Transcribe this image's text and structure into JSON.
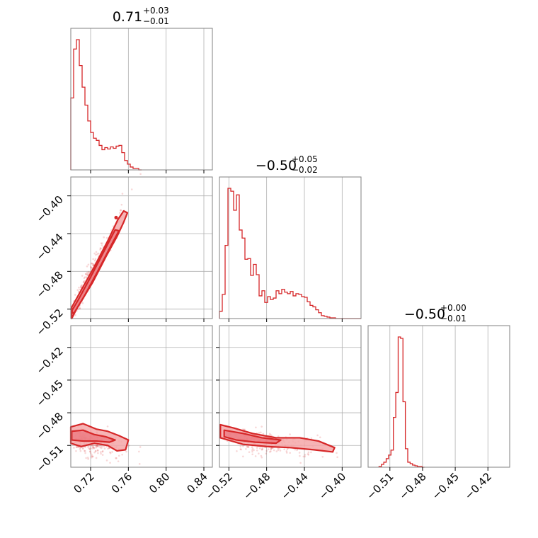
{
  "chart_data": {
    "type": "corner",
    "color": "#d62728",
    "parameters": [
      {
        "index": 0,
        "title_value": "0.71",
        "title_plus": "+0.03",
        "title_minus": "−0.01",
        "range": [
          0.699,
          0.849
        ],
        "ticks": [
          0.72,
          0.76,
          0.8,
          0.84
        ],
        "tick_labels": [
          "0.72",
          "0.76",
          "0.80",
          "0.84"
        ]
      },
      {
        "index": 1,
        "title_value": "−0.50",
        "title_plus": "+0.05",
        "title_minus": "−0.02",
        "range": [
          -0.53,
          -0.38
        ],
        "ticks": [
          -0.52,
          -0.48,
          -0.44,
          -0.4
        ],
        "tick_labels": [
          "−0.52",
          "−0.48",
          "−0.44",
          "−0.40"
        ]
      },
      {
        "index": 2,
        "title_value": "−0.50",
        "title_plus": "+0.00",
        "title_minus": "−0.01",
        "range": [
          -0.53,
          -0.4
        ],
        "ticks": [
          -0.51,
          -0.48,
          -0.45,
          -0.42
        ],
        "tick_labels": [
          "−0.51",
          "−0.48",
          "−0.45",
          "−0.42"
        ]
      }
    ],
    "histograms": [
      {
        "param": 0,
        "edges": [
          0.699,
          0.702,
          0.705,
          0.708,
          0.711,
          0.714,
          0.717,
          0.72,
          0.723,
          0.726,
          0.729,
          0.732,
          0.735,
          0.738,
          0.741,
          0.744,
          0.747,
          0.75,
          0.753,
          0.756,
          0.759,
          0.762,
          0.765,
          0.768,
          0.771,
          0.774
        ],
        "counts": [
          100,
          168,
          181,
          145,
          115,
          90,
          68,
          52,
          44,
          41,
          34,
          28,
          31,
          29,
          32,
          30,
          33,
          34,
          24,
          13,
          8,
          4,
          2,
          2,
          0
        ]
      },
      {
        "param": 1,
        "edges": [
          -0.53,
          -0.527,
          -0.524,
          -0.521,
          -0.518,
          -0.515,
          -0.512,
          -0.509,
          -0.506,
          -0.503,
          -0.5,
          -0.497,
          -0.494,
          -0.491,
          -0.488,
          -0.485,
          -0.482,
          -0.479,
          -0.476,
          -0.473,
          -0.47,
          -0.467,
          -0.464,
          -0.461,
          -0.458,
          -0.455,
          -0.452,
          -0.449,
          -0.446,
          -0.443,
          -0.44,
          -0.437,
          -0.434,
          -0.431,
          -0.428,
          -0.425,
          -0.422,
          -0.419,
          -0.416,
          -0.413,
          -0.41,
          -0.407,
          -0.404,
          -0.401,
          -0.398,
          -0.395,
          -0.392,
          -0.389,
          -0.386,
          -0.383,
          -0.38
        ],
        "counts": [
          10,
          33,
          100,
          178,
          174,
          148,
          169,
          121,
          110,
          81,
          82,
          59,
          74,
          60,
          31,
          38,
          22,
          30,
          26,
          28,
          38,
          34,
          40,
          36,
          34,
          37,
          31,
          34,
          33,
          30,
          29,
          23,
          18,
          16,
          12,
          8,
          4,
          3,
          2,
          1,
          1,
          0,
          0,
          0,
          0,
          0,
          0,
          0,
          0,
          0
        ]
      },
      {
        "param": 2,
        "edges": [
          -0.52,
          -0.5178,
          -0.5156,
          -0.5134,
          -0.5112,
          -0.509,
          -0.5068,
          -0.5046,
          -0.5024,
          -0.5002,
          -0.498,
          -0.4958,
          -0.4936,
          -0.4914,
          -0.4892,
          -0.487,
          -0.4848,
          -0.4826,
          -0.4804,
          -0.4782
        ],
        "counts": [
          1,
          4,
          7,
          12,
          17,
          24,
          70,
          105,
          183,
          181,
          92,
          26,
          7,
          5,
          3,
          2,
          1,
          1,
          0
        ]
      }
    ],
    "contour_pairs": [
      {
        "x_param": 0,
        "y_param": 1
      },
      {
        "x_param": 0,
        "y_param": 2
      },
      {
        "x_param": 1,
        "y_param": 2
      }
    ]
  }
}
